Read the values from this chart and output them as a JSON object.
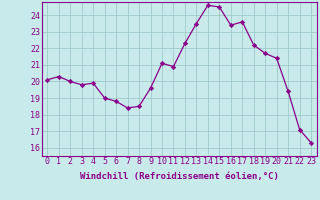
{
  "x": [
    0,
    1,
    2,
    3,
    4,
    5,
    6,
    7,
    8,
    9,
    10,
    11,
    12,
    13,
    14,
    15,
    16,
    17,
    18,
    19,
    20,
    21,
    22,
    23
  ],
  "y": [
    20.1,
    20.3,
    20.0,
    19.8,
    19.9,
    19.0,
    18.8,
    18.4,
    18.5,
    19.6,
    21.1,
    20.9,
    22.3,
    23.5,
    24.6,
    24.5,
    23.4,
    23.6,
    22.2,
    21.7,
    21.4,
    19.4,
    17.1,
    16.3
  ],
  "line_color": "#8b008b",
  "marker": "D",
  "marker_size": 2.2,
  "bg_color": "#c8eaea",
  "grid_color": "#a0cccc",
  "xlabel": "Windchill (Refroidissement éolien,°C)",
  "xlabel_color": "#8b008b",
  "tick_color": "#8b008b",
  "border_color": "#8b008b",
  "ylim": [
    15.5,
    24.8
  ],
  "xlim": [
    -0.5,
    23.5
  ],
  "yticks": [
    16,
    17,
    18,
    19,
    20,
    21,
    22,
    23,
    24
  ],
  "xticks": [
    0,
    1,
    2,
    3,
    4,
    5,
    6,
    7,
    8,
    9,
    10,
    11,
    12,
    13,
    14,
    15,
    16,
    17,
    18,
    19,
    20,
    21,
    22,
    23
  ],
  "font_family": "monospace",
  "xlabel_fontsize": 6.5,
  "tick_fontsize": 6.0
}
